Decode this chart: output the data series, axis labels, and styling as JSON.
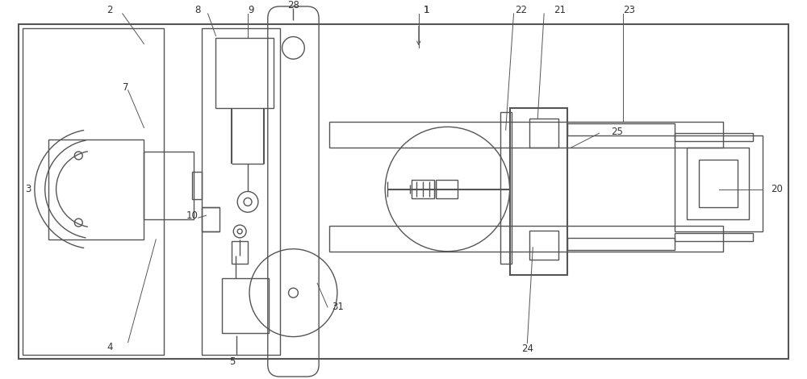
{
  "bg_color": "#ffffff",
  "lc": "#555555",
  "lw": 1.0,
  "fig_w": 10.0,
  "fig_h": 4.7
}
